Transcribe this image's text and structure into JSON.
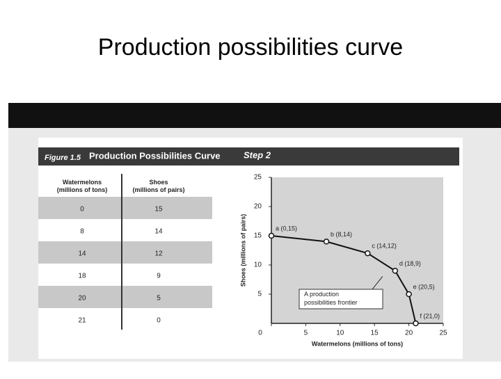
{
  "slide_title": "Production possibilities curve",
  "figure": {
    "label": "Figure 1.5",
    "title": "Production Possibilities Curve",
    "step": "Step 2"
  },
  "table": {
    "headers": [
      "Watermelons (millions of tons)",
      "Shoes (millions of pairs)"
    ],
    "rows": [
      [
        0,
        15
      ],
      [
        8,
        14
      ],
      [
        14,
        12
      ],
      [
        18,
        9
      ],
      [
        20,
        5
      ],
      [
        21,
        0
      ]
    ]
  },
  "chart_data": {
    "type": "line",
    "x": [
      0,
      8,
      14,
      18,
      20,
      21
    ],
    "series": [
      {
        "color": "#111111",
        "values": [
          15,
          14,
          12,
          9,
          5,
          0
        ]
      }
    ],
    "point_labels": [
      "a (0,15)",
      "b (8,14)",
      "c (14,12)",
      "d (18,9)",
      "e (20,5)",
      "f (21,0)"
    ],
    "annotation": "A production possibilities frontier",
    "xlabel": "Watermelons (millions of tons)",
    "ylabel": "Shoes (millions of pairs)",
    "xlim": [
      0,
      25
    ],
    "ylim": [
      0,
      25
    ],
    "xticks": [
      0,
      5,
      10,
      15,
      20,
      25
    ],
    "yticks": [
      5,
      10,
      15,
      20,
      25
    ]
  }
}
